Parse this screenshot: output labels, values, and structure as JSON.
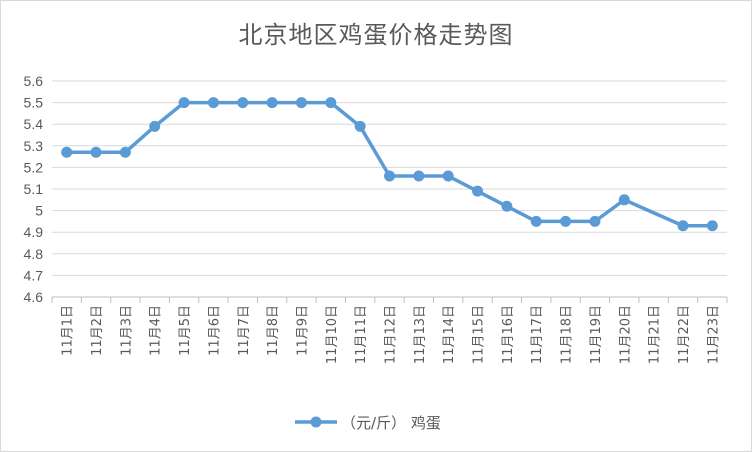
{
  "chart_data": {
    "type": "line",
    "title": "北京地区鸡蛋价格走势图",
    "xlabel": "",
    "ylabel": "",
    "ylim": [
      4.6,
      5.6
    ],
    "yticks": [
      "4.6",
      "4.7",
      "4.8",
      "4.9",
      "5",
      "5.1",
      "5.2",
      "5.3",
      "5.4",
      "5.5",
      "5.6"
    ],
    "categories": [
      "11月1日",
      "11月2日",
      "11月3日",
      "11月4日",
      "11月5日",
      "11月6日",
      "11月7日",
      "11月8日",
      "11月9日",
      "11月10日",
      "11月11日",
      "11月12日",
      "11月13日",
      "11月14日",
      "11月15日",
      "11月16日",
      "11月17日",
      "11月18日",
      "11月19日",
      "11月20日",
      "11月21日",
      "11月22日",
      "11月23日"
    ],
    "series": [
      {
        "name": "（元/斤） 鸡蛋",
        "color": "#5B9BD5",
        "values": [
          5.27,
          5.27,
          5.27,
          5.39,
          5.5,
          5.5,
          5.5,
          5.5,
          5.5,
          5.5,
          5.39,
          5.16,
          5.16,
          5.16,
          5.09,
          5.02,
          4.95,
          4.95,
          4.95,
          5.05,
          null,
          4.93,
          4.93
        ]
      }
    ],
    "grid": true,
    "legend_position": "bottom"
  }
}
